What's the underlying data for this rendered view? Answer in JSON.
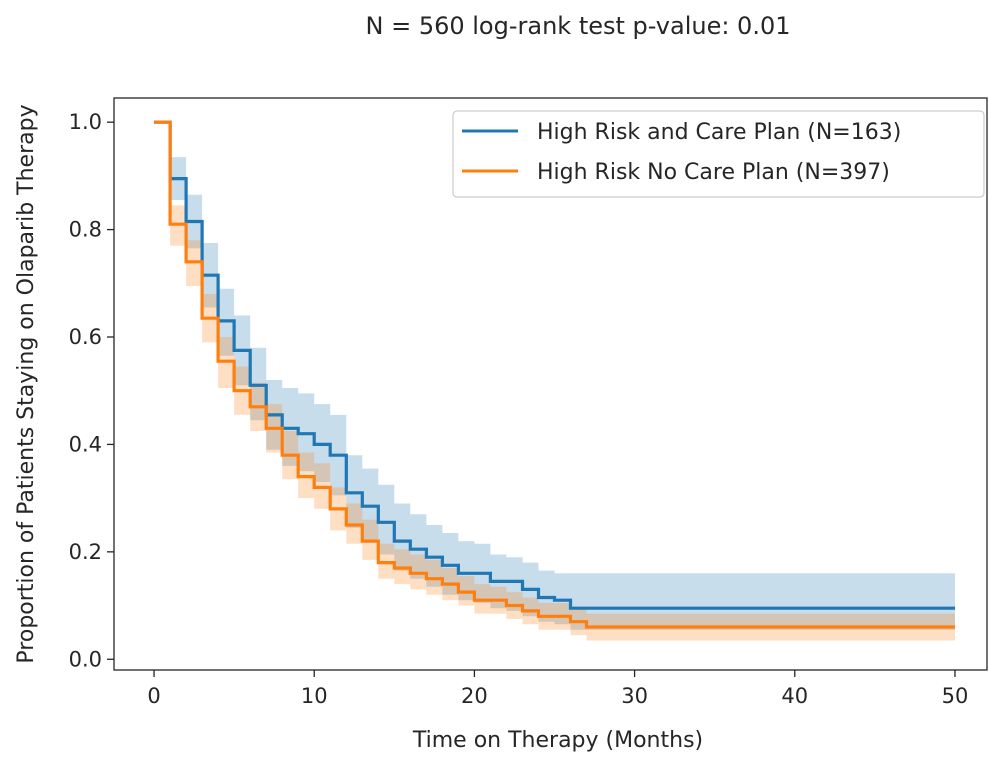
{
  "chart_data": {
    "type": "line",
    "title": "N = 560 log-rank test p-value: 0.01",
    "xlabel": "Time on Therapy (Months)",
    "ylabel": "Proportion of Patients Staying on Olaparib Therapy",
    "xlim": [
      -2.5,
      52
    ],
    "ylim": [
      -0.02,
      1.045
    ],
    "xticks": [
      0,
      10,
      20,
      30,
      40,
      50
    ],
    "xtick_labels": [
      "0",
      "10",
      "20",
      "30",
      "40",
      "50"
    ],
    "yticks": [
      0.0,
      0.2,
      0.4,
      0.6,
      0.8,
      1.0
    ],
    "ytick_labels": [
      "0.0",
      "0.2",
      "0.4",
      "0.6",
      "0.8",
      "1.0"
    ],
    "grid": false,
    "legend_position": "top-right",
    "step": "post",
    "series": [
      {
        "name": "High Risk and Care Plan (N=163)",
        "color": "#1f77b4",
        "x": [
          0,
          1,
          2,
          3,
          4,
          5,
          6,
          7,
          8,
          9,
          10,
          11,
          12,
          13,
          14,
          15,
          16,
          17,
          18,
          19,
          20,
          21,
          22,
          23,
          24,
          25,
          26,
          50
        ],
        "y": [
          1.0,
          0.895,
          0.815,
          0.715,
          0.63,
          0.575,
          0.51,
          0.455,
          0.43,
          0.42,
          0.4,
          0.38,
          0.31,
          0.285,
          0.255,
          0.22,
          0.205,
          0.19,
          0.175,
          0.16,
          0.16,
          0.145,
          0.145,
          0.13,
          0.115,
          0.11,
          0.095,
          0.095
        ],
        "lower": [
          1.0,
          0.855,
          0.765,
          0.655,
          0.565,
          0.51,
          0.445,
          0.39,
          0.36,
          0.35,
          0.33,
          0.305,
          0.245,
          0.22,
          0.195,
          0.165,
          0.15,
          0.135,
          0.12,
          0.11,
          0.105,
          0.095,
          0.09,
          0.08,
          0.07,
          0.065,
          0.055,
          0.055
        ],
        "upper": [
          1.0,
          0.935,
          0.865,
          0.775,
          0.69,
          0.64,
          0.58,
          0.52,
          0.505,
          0.495,
          0.475,
          0.455,
          0.38,
          0.355,
          0.325,
          0.29,
          0.27,
          0.25,
          0.235,
          0.22,
          0.215,
          0.195,
          0.19,
          0.18,
          0.165,
          0.16,
          0.16,
          0.16
        ]
      },
      {
        "name": "High Risk No Care Plan (N=397)",
        "color": "#ff7f0e",
        "x": [
          0,
          1,
          2,
          3,
          4,
          5,
          6,
          7,
          8,
          9,
          10,
          11,
          12,
          13,
          14,
          15,
          16,
          17,
          18,
          19,
          20,
          21,
          22,
          23,
          24,
          25,
          26,
          27,
          50
        ],
        "y": [
          1.0,
          0.81,
          0.74,
          0.635,
          0.555,
          0.5,
          0.47,
          0.43,
          0.38,
          0.34,
          0.32,
          0.28,
          0.25,
          0.22,
          0.18,
          0.17,
          0.16,
          0.15,
          0.14,
          0.125,
          0.11,
          0.11,
          0.1,
          0.09,
          0.08,
          0.08,
          0.07,
          0.06,
          0.06
        ],
        "lower": [
          1.0,
          0.77,
          0.695,
          0.59,
          0.505,
          0.455,
          0.425,
          0.385,
          0.335,
          0.3,
          0.28,
          0.24,
          0.215,
          0.185,
          0.15,
          0.14,
          0.13,
          0.12,
          0.11,
          0.1,
          0.085,
          0.085,
          0.075,
          0.065,
          0.055,
          0.055,
          0.045,
          0.035,
          0.035
        ],
        "upper": [
          1.0,
          0.845,
          0.78,
          0.68,
          0.6,
          0.545,
          0.515,
          0.475,
          0.425,
          0.385,
          0.365,
          0.32,
          0.29,
          0.26,
          0.215,
          0.205,
          0.195,
          0.185,
          0.17,
          0.155,
          0.14,
          0.135,
          0.125,
          0.115,
          0.105,
          0.105,
          0.095,
          0.085,
          0.085
        ]
      }
    ]
  }
}
